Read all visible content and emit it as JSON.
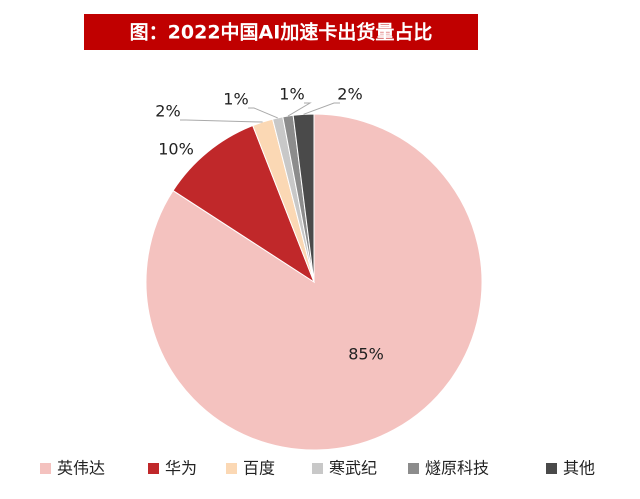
{
  "chart_data": {
    "type": "pie",
    "title": "图：2022中国AI加速卡出货量占比",
    "categories": [
      "英伟达",
      "华为",
      "百度",
      "寒武纪",
      "燧原科技",
      "其他"
    ],
    "values": [
      85,
      10,
      2,
      1,
      1,
      2
    ],
    "value_labels": [
      "85%",
      "10%",
      "2%",
      "1%",
      "1%",
      "2%"
    ],
    "colors": [
      "#f4c2bf",
      "#c0282a",
      "#fbd8b4",
      "#c8c8c8",
      "#8c8c8c",
      "#4a4a4a"
    ],
    "legend": "bottom"
  }
}
